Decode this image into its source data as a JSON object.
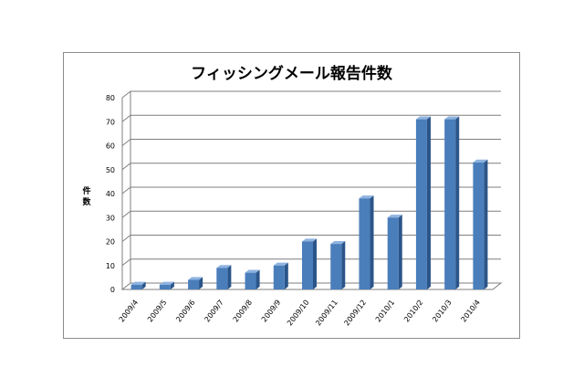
{
  "chart_data": {
    "type": "bar",
    "title": "フィッシングメール報告件数",
    "xlabel": "",
    "ylabel": "件数",
    "ylim": [
      0,
      80
    ],
    "yticks": [
      0,
      10,
      20,
      30,
      40,
      50,
      60,
      70,
      80
    ],
    "categories": [
      "2009/4",
      "2009/5",
      "2009/6",
      "2009/7",
      "2009/8",
      "2009/9",
      "2009/10",
      "2009/11",
      "2009/12",
      "2010/1",
      "2010/2",
      "2010/3",
      "2010/4"
    ],
    "values": [
      2,
      2,
      4,
      9,
      7,
      10,
      20,
      19,
      38,
      30,
      71,
      71,
      53
    ],
    "grid": true,
    "style": "3d-column",
    "colors": {
      "bar_front": "#4a7ebb",
      "bar_side": "#2b5589",
      "bar_top": "#8fb3e0",
      "grid": "#7f7f7f"
    }
  }
}
